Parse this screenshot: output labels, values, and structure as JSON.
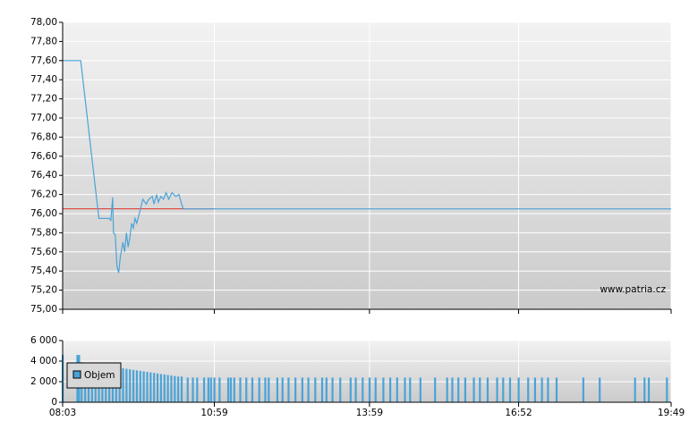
{
  "chart_data": [
    {
      "type": "line",
      "x": [
        483,
        504,
        525,
        537,
        539,
        541,
        542,
        544,
        546,
        548,
        550,
        553,
        555,
        557,
        559,
        561,
        563,
        565,
        567,
        569,
        572,
        576,
        580,
        583,
        587,
        589,
        592,
        594,
        597,
        600,
        603,
        606,
        610,
        614,
        618,
        621,
        623,
        1189
      ],
      "values": [
        77.6,
        77.6,
        75.95,
        75.95,
        75.93,
        76.17,
        75.8,
        75.78,
        75.45,
        75.38,
        75.55,
        75.7,
        75.6,
        75.8,
        75.65,
        75.75,
        75.9,
        75.85,
        75.95,
        75.9,
        76.0,
        76.15,
        76.1,
        76.15,
        76.18,
        76.1,
        76.2,
        76.12,
        76.18,
        76.15,
        76.22,
        76.15,
        76.22,
        76.18,
        76.2,
        76.1,
        76.05,
        76.05
      ],
      "color": "#4aa3d8",
      "reference_line": {
        "value": 76.05,
        "x": [
          483,
          659
        ],
        "color": "#e0302a"
      },
      "xlim": [
        483,
        1189
      ],
      "ylim": [
        75,
        78
      ],
      "yticks": [
        {
          "value": 75,
          "label": "75,00"
        },
        {
          "value": 75.2,
          "label": "75,20"
        },
        {
          "value": 75.4,
          "label": "75,40"
        },
        {
          "value": 75.6,
          "label": "75,60"
        },
        {
          "value": 75.8,
          "label": "75,80"
        },
        {
          "value": 76,
          "label": "76,00"
        },
        {
          "value": 76.2,
          "label": "76,20"
        },
        {
          "value": 76.4,
          "label": "76,40"
        },
        {
          "value": 76.6,
          "label": "76,60"
        },
        {
          "value": 76.8,
          "label": "76,80"
        },
        {
          "value": 77,
          "label": "77,00"
        },
        {
          "value": 77.2,
          "label": "77,20"
        },
        {
          "value": 77.4,
          "label": "77,40"
        },
        {
          "value": 77.6,
          "label": "77,60"
        },
        {
          "value": 77.8,
          "label": "77,80"
        },
        {
          "value": 78,
          "label": "78,00"
        }
      ],
      "grid": true,
      "annotation": "www.patria.cz"
    },
    {
      "type": "bar",
      "series": [
        {
          "name": "Objem",
          "color": "#4aa3d8",
          "x": [
            483,
            500,
            502,
            505,
            509,
            513,
            517,
            521,
            525,
            529,
            533,
            537,
            541,
            545,
            549,
            553,
            557,
            561,
            565,
            569,
            573,
            577,
            581,
            585,
            589,
            593,
            597,
            601,
            605,
            609,
            613,
            617,
            621,
            628,
            634,
            639,
            647,
            652,
            655,
            659,
            665,
            675,
            678,
            682,
            689,
            696,
            703,
            711,
            718,
            722,
            732,
            738,
            745,
            753,
            761,
            768,
            776,
            784,
            789,
            796,
            805,
            817,
            823,
            831,
            839,
            846,
            855,
            863,
            871,
            880,
            886,
            898,
            915,
            929,
            935,
            942,
            950,
            960,
            967,
            976,
            987,
            994,
            1002,
            1012,
            1023,
            1031,
            1039,
            1046,
            1056,
            1087,
            1106,
            1147,
            1158,
            1163,
            1184
          ],
          "values": [
            4600,
            4600,
            4600,
            3900,
            3850,
            3800,
            3750,
            3700,
            3650,
            3600,
            3550,
            3500,
            3450,
            3400,
            3350,
            3300,
            3250,
            3200,
            3150,
            3100,
            3050,
            3000,
            2950,
            2900,
            2850,
            2800,
            2750,
            2700,
            2650,
            2600,
            2550,
            2500,
            2500,
            2400,
            2400,
            2400,
            2400,
            2400,
            2400,
            2400,
            2400,
            2400,
            2400,
            2400,
            2400,
            2400,
            2400,
            2400,
            2400,
            2400,
            2400,
            2400,
            2400,
            2400,
            2400,
            2400,
            2400,
            2400,
            2400,
            2400,
            2400,
            2400,
            2400,
            2400,
            2400,
            2400,
            2400,
            2400,
            2400,
            2400,
            2400,
            2400,
            2400,
            2400,
            2400,
            2400,
            2400,
            2400,
            2400,
            2400,
            2400,
            2400,
            2400,
            2400,
            2400,
            2400,
            2400,
            2400,
            2400,
            2400,
            2400,
            2400,
            2400,
            2400,
            2400
          ]
        }
      ],
      "xlim": [
        483,
        1189
      ],
      "xticks": [
        {
          "value": 483,
          "label": "08:03"
        },
        {
          "value": 659,
          "label": "10:59"
        },
        {
          "value": 839,
          "label": "13:59"
        },
        {
          "value": 1012,
          "label": "16:52"
        },
        {
          "value": 1189,
          "label": "19:49"
        }
      ],
      "ylim": [
        0,
        6000
      ],
      "yticks": [
        0,
        {
          "value": 2000,
          "label": "2 000"
        },
        {
          "value": 4000,
          "label": "4 000"
        },
        {
          "value": 6000,
          "label": "6 000"
        }
      ],
      "grid": true,
      "legend": "top-left"
    }
  ]
}
